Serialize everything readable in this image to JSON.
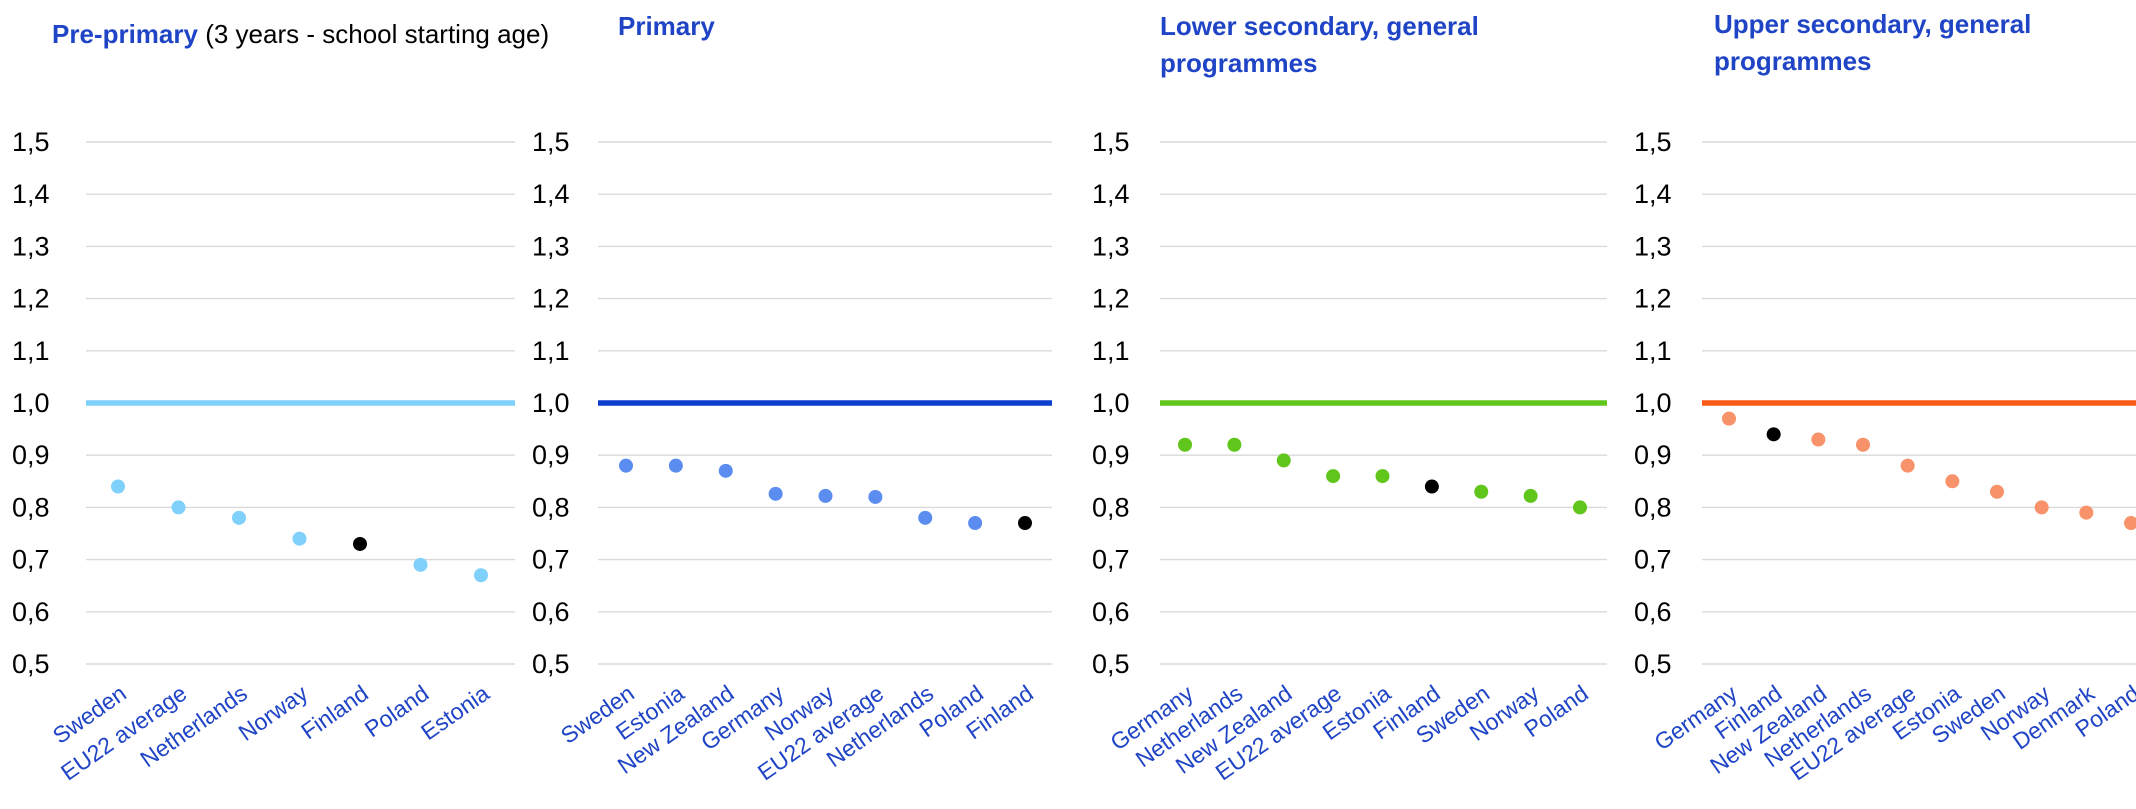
{
  "colors": {
    "title": "#1f44c6",
    "category_label": "#1f44c6",
    "gridline": "#d9d9d9",
    "axis_text": "#000000",
    "highlight_point": "#000000"
  },
  "panels": [
    {
      "title_main": "Pre-primary",
      "title_sub": "(3 years - school starting age)",
      "title_lines": [],
      "reference_color": "#7fd0fb",
      "point_color": "#7fd0fb"
    },
    {
      "title_main": "",
      "title_sub": "",
      "title_lines": [
        "Primary"
      ],
      "reference_color": "#0c3fce",
      "point_color": "#5b8cf0"
    },
    {
      "title_main": "",
      "title_sub": "",
      "title_lines": [
        "Lower secondary, general",
        "programmes"
      ],
      "reference_color": "#61c61b",
      "point_color": "#61c61b"
    },
    {
      "title_main": "",
      "title_sub": "",
      "title_lines": [
        "Upper secondary, general",
        "programmes"
      ],
      "reference_color": "#fb5a14",
      "point_color": "#f7926a"
    }
  ],
  "chart_data": [
    {
      "type": "scatter",
      "title": "Pre-primary (3 years - school starting age)",
      "categories": [
        "Sweden",
        "EU22 average",
        "Netherlands",
        "Norway",
        "Finland",
        "Poland",
        "Estonia"
      ],
      "values": [
        0.84,
        0.8,
        0.78,
        0.74,
        0.73,
        0.69,
        0.67
      ],
      "highlight": "Finland",
      "reference_line": 1.0,
      "ylim": [
        0.5,
        1.5
      ],
      "yticks": [
        "1,5",
        "1,4",
        "1,3",
        "1,2",
        "1,1",
        "1,0",
        "0,9",
        "0,8",
        "0,7",
        "0,6",
        "0,5"
      ],
      "grid": true
    },
    {
      "type": "scatter",
      "title": "Primary",
      "categories": [
        "Sweden",
        "Estonia",
        "New Zealand",
        "Germany",
        "Norway",
        "EU22 average",
        "Netherlands",
        "Poland",
        "Finland"
      ],
      "values": [
        0.88,
        0.88,
        0.87,
        0.826,
        0.822,
        0.82,
        0.78,
        0.77,
        0.77
      ],
      "highlight": "Finland",
      "reference_line": 1.0,
      "ylim": [
        0.5,
        1.5
      ],
      "yticks": [
        "1,5",
        "1,4",
        "1,3",
        "1,2",
        "1,1",
        "1,0",
        "0,9",
        "0,8",
        "0,7",
        "0,6",
        "0,5"
      ],
      "grid": true
    },
    {
      "type": "scatter",
      "title": "Lower secondary, general programmes",
      "categories": [
        "Germany",
        "Netherlands",
        "New Zealand",
        "EU22 average",
        "Estonia",
        "Finland",
        "Sweden",
        "Norway",
        "Poland"
      ],
      "values": [
        0.92,
        0.92,
        0.89,
        0.86,
        0.86,
        0.84,
        0.83,
        0.822,
        0.8
      ],
      "highlight": "Finland",
      "reference_line": 1.0,
      "ylim": [
        0.5,
        1.5
      ],
      "yticks": [
        "1,5",
        "1,4",
        "1,3",
        "1,2",
        "1,1",
        "1,0",
        "0,9",
        "0,8",
        "0,7",
        "0,6",
        "0,5"
      ],
      "grid": true
    },
    {
      "type": "scatter",
      "title": "Upper secondary, general programmes",
      "categories": [
        "Germany",
        "Finland",
        "New Zealand",
        "Netherlands",
        "EU22 average",
        "Estonia",
        "Sweden",
        "Norway",
        "Denmark",
        "Poland"
      ],
      "values": [
        0.97,
        0.94,
        0.93,
        0.92,
        0.88,
        0.85,
        0.83,
        0.8,
        0.79,
        0.77
      ],
      "highlight": "Finland",
      "reference_line": 1.0,
      "ylim": [
        0.5,
        1.5
      ],
      "yticks": [
        "1,5",
        "1,4",
        "1,3",
        "1,2",
        "1,1",
        "1,0",
        "0,9",
        "0,8",
        "0,7",
        "0,6",
        "0,5"
      ],
      "grid": true
    }
  ]
}
